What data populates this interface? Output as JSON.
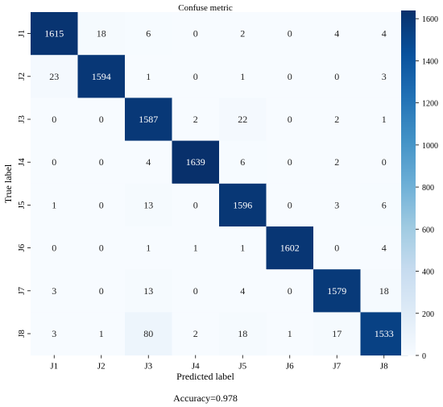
{
  "chart_data": {
    "type": "heatmap",
    "title": "Confuse metric",
    "xlabel": "Predicted label",
    "ylabel": "True label",
    "footer": "Accuracy=0.978",
    "x_categories": [
      "J1",
      "J2",
      "J3",
      "J4",
      "J5",
      "J6",
      "J7",
      "J8"
    ],
    "y_categories": [
      "J1",
      "J2",
      "J3",
      "J4",
      "J5",
      "J6",
      "J7",
      "J8"
    ],
    "values": [
      [
        1615,
        18,
        6,
        0,
        2,
        0,
        4,
        4
      ],
      [
        23,
        1594,
        1,
        0,
        1,
        0,
        0,
        3
      ],
      [
        0,
        0,
        1587,
        2,
        22,
        0,
        2,
        1
      ],
      [
        0,
        0,
        4,
        1639,
        6,
        0,
        2,
        0
      ],
      [
        1,
        0,
        13,
        0,
        1596,
        0,
        3,
        6
      ],
      [
        0,
        0,
        1,
        1,
        1,
        1602,
        0,
        4
      ],
      [
        3,
        0,
        13,
        0,
        4,
        0,
        1579,
        18
      ],
      [
        3,
        1,
        80,
        2,
        18,
        1,
        17,
        1533
      ]
    ],
    "colorbar": {
      "colormap": "Blues",
      "range": [
        0,
        1639
      ],
      "ticks": [
        0,
        200,
        400,
        600,
        800,
        1000,
        1200,
        1400,
        1600
      ]
    }
  }
}
